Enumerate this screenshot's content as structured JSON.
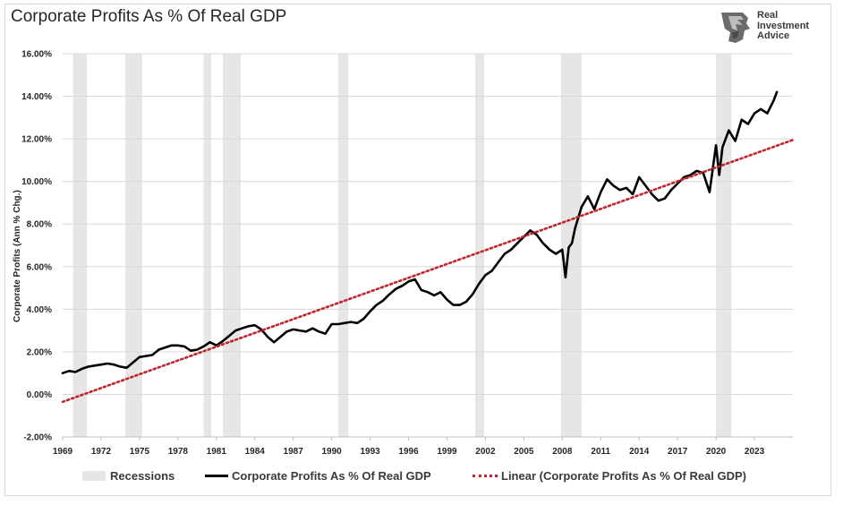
{
  "page": {
    "title": "Corporate Profits As % Of Real GDP",
    "logo_text": "Real\nInvestment\nAdvice",
    "logo_icon": "lion-head-logo-icon"
  },
  "chart_data": {
    "type": "line",
    "title": "Corporate Profits As % Of Real GDP",
    "xlabel": "",
    "ylabel": "Corporate Profits (Ann % Chg.)",
    "xlim": [
      1969,
      2026
    ],
    "ylim": [
      -2,
      16
    ],
    "y_ticks": [
      "-2.00%",
      "0.00%",
      "2.00%",
      "4.00%",
      "6.00%",
      "8.00%",
      "10.00%",
      "12.00%",
      "14.00%",
      "16.00%"
    ],
    "y_tick_values": [
      -2,
      0,
      2,
      4,
      6,
      8,
      10,
      12,
      14,
      16
    ],
    "x_ticks": [
      "1969",
      "1972",
      "1975",
      "1978",
      "1981",
      "1984",
      "1987",
      "1990",
      "1993",
      "1996",
      "1999",
      "2002",
      "2005",
      "2008",
      "2011",
      "2014",
      "2017",
      "2020",
      "2023"
    ],
    "x_tick_values": [
      1969,
      1972,
      1975,
      1978,
      1981,
      1984,
      1987,
      1990,
      1993,
      1996,
      1999,
      2002,
      2005,
      2008,
      2011,
      2014,
      2017,
      2020,
      2023
    ],
    "grid": "horizontal",
    "legend_position": "bottom",
    "recessions": [
      [
        1969.8,
        1970.9
      ],
      [
        1973.9,
        1975.2
      ],
      [
        1980.0,
        1980.6
      ],
      [
        1981.5,
        1982.9
      ],
      [
        1990.5,
        1991.3
      ],
      [
        2001.2,
        2001.9
      ],
      [
        2007.9,
        2009.5
      ],
      [
        2020.0,
        2021.2
      ]
    ],
    "series": [
      {
        "name": "Corporate Profits As % Of Real GDP",
        "color": "#000000",
        "x": [
          1969.0,
          1969.5,
          1970.0,
          1970.5,
          1971.0,
          1971.5,
          1972.0,
          1972.5,
          1973.0,
          1973.5,
          1974.0,
          1974.5,
          1975.0,
          1975.5,
          1976.0,
          1976.5,
          1977.0,
          1977.5,
          1978.0,
          1978.5,
          1979.0,
          1979.5,
          1980.0,
          1980.5,
          1981.0,
          1981.5,
          1982.0,
          1982.5,
          1983.0,
          1983.5,
          1984.0,
          1984.5,
          1985.0,
          1985.5,
          1986.0,
          1986.5,
          1987.0,
          1987.5,
          1988.0,
          1988.5,
          1989.0,
          1989.5,
          1990.0,
          1990.5,
          1991.0,
          1991.5,
          1992.0,
          1992.5,
          1993.0,
          1993.5,
          1994.0,
          1994.5,
          1995.0,
          1995.5,
          1996.0,
          1996.5,
          1997.0,
          1997.5,
          1998.0,
          1998.5,
          1999.0,
          1999.5,
          2000.0,
          2000.5,
          2001.0,
          2001.5,
          2002.0,
          2002.5,
          2003.0,
          2003.5,
          2004.0,
          2004.5,
          2005.0,
          2005.5,
          2006.0,
          2006.5,
          2007.0,
          2007.5,
          2008.0,
          2008.25,
          2008.5,
          2008.75,
          2009.0,
          2009.5,
          2010.0,
          2010.5,
          2011.0,
          2011.5,
          2012.0,
          2012.5,
          2013.0,
          2013.5,
          2014.0,
          2014.5,
          2015.0,
          2015.5,
          2016.0,
          2016.5,
          2017.0,
          2017.5,
          2018.0,
          2018.5,
          2019.0,
          2019.5,
          2020.0,
          2020.25,
          2020.5,
          2021.0,
          2021.5,
          2022.0,
          2022.5,
          2023.0,
          2023.5,
          2024.0,
          2024.5,
          2024.75
        ],
        "values": [
          1.0,
          1.1,
          1.05,
          1.2,
          1.3,
          1.35,
          1.4,
          1.45,
          1.4,
          1.3,
          1.25,
          1.5,
          1.75,
          1.8,
          1.85,
          2.1,
          2.2,
          2.3,
          2.3,
          2.25,
          2.05,
          2.1,
          2.25,
          2.45,
          2.3,
          2.5,
          2.75,
          3.0,
          3.1,
          3.2,
          3.25,
          3.05,
          2.7,
          2.45,
          2.7,
          2.95,
          3.05,
          3.0,
          2.95,
          3.1,
          2.95,
          2.85,
          3.3,
          3.3,
          3.35,
          3.4,
          3.35,
          3.55,
          3.9,
          4.2,
          4.4,
          4.7,
          4.95,
          5.1,
          5.3,
          5.4,
          4.9,
          4.8,
          4.65,
          4.8,
          4.45,
          4.2,
          4.2,
          4.35,
          4.7,
          5.2,
          5.6,
          5.8,
          6.2,
          6.6,
          6.8,
          7.1,
          7.4,
          7.7,
          7.5,
          7.1,
          6.8,
          6.6,
          6.8,
          5.5,
          6.9,
          7.1,
          7.8,
          8.8,
          9.3,
          8.7,
          9.5,
          10.1,
          9.8,
          9.6,
          9.7,
          9.4,
          10.2,
          9.8,
          9.4,
          9.1,
          9.2,
          9.6,
          9.9,
          10.2,
          10.3,
          10.5,
          10.4,
          9.5,
          11.7,
          10.3,
          11.6,
          12.4,
          11.9,
          12.9,
          12.7,
          13.2,
          13.4,
          13.2,
          13.8,
          14.2
        ]
      },
      {
        "name": "Linear (Corporate Profits As % Of Real GDP)",
        "color": "#c0272d",
        "style": "dotted",
        "x": [
          1969.0,
          2026.0
        ],
        "values": [
          -0.35,
          11.95
        ]
      }
    ],
    "legend": [
      {
        "label": "Recessions",
        "kind": "area",
        "color": "#e6e6e6"
      },
      {
        "label": "Corporate Profits As % Of Real GDP",
        "kind": "line",
        "color": "#000000"
      },
      {
        "label": "Linear (Corporate Profits As % Of Real GDP)",
        "kind": "dotted-line",
        "color": "#c0272d"
      }
    ]
  }
}
